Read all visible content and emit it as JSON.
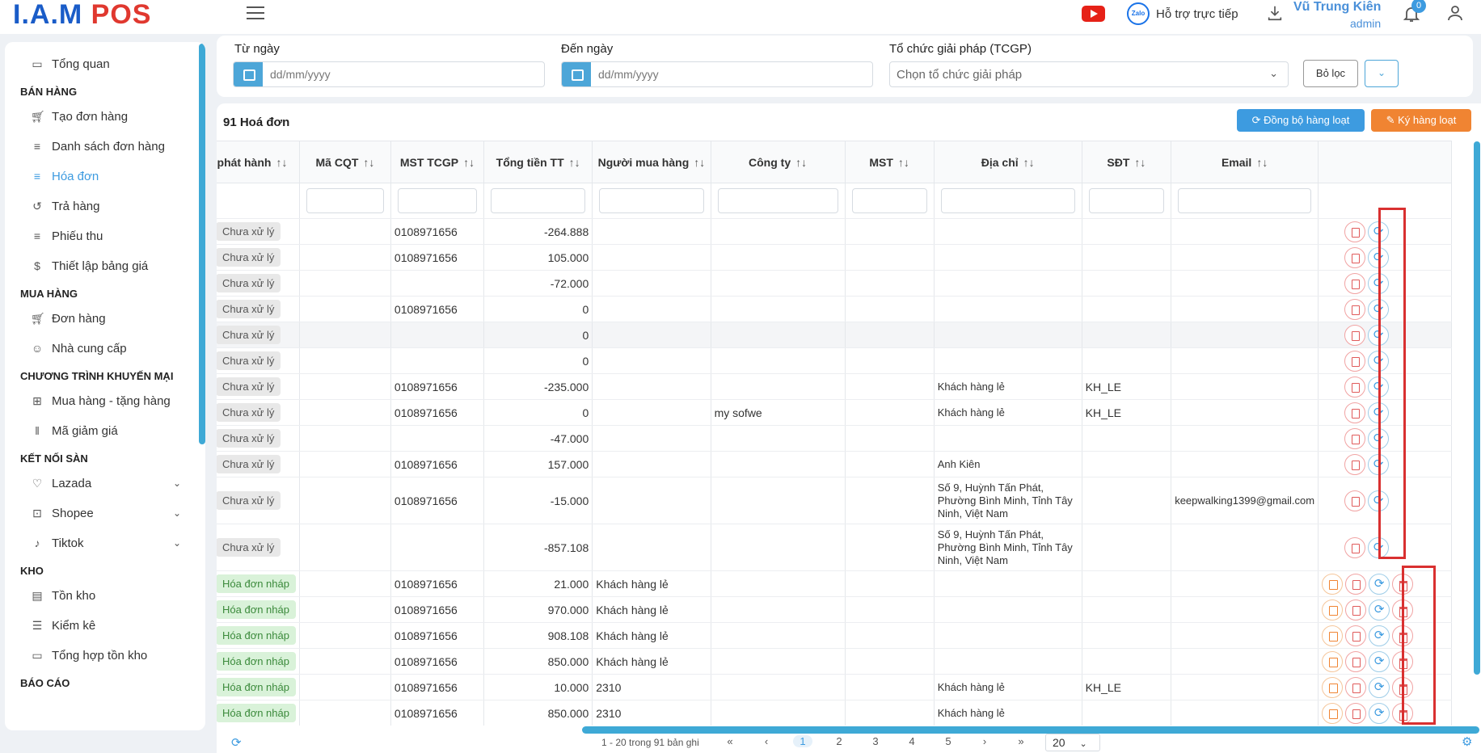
{
  "header": {
    "logo_left": "I.A.M",
    "logo_right": "POS",
    "support_label": "Hỗ trợ trực tiếp",
    "zalo_label": "Zalo",
    "user_name": "Vũ Trung Kiên",
    "user_role": "admin",
    "notification_count": "0"
  },
  "sidebar": {
    "items": [
      {
        "label": "Tổng quan",
        "icon": "monitor-icon"
      },
      {
        "section": "BÁN HÀNG"
      },
      {
        "label": "Tạo đơn hàng",
        "icon": "cart-icon"
      },
      {
        "label": "Danh sách đơn hàng",
        "icon": "list-icon"
      },
      {
        "label": "Hóa đơn",
        "icon": "list-icon",
        "active": true
      },
      {
        "label": "Trả hàng",
        "icon": "history-icon"
      },
      {
        "label": "Phiếu thu",
        "icon": "list-icon"
      },
      {
        "label": "Thiết lập bảng giá",
        "icon": "dollar-icon"
      },
      {
        "section": "MUA HÀNG"
      },
      {
        "label": "Đơn hàng",
        "icon": "cart-icon"
      },
      {
        "label": "Nhà cung cấp",
        "icon": "users-icon"
      },
      {
        "section": "CHƯƠNG TRÌNH KHUYẾN MẠI"
      },
      {
        "label": "Mua hàng - tặng hàng",
        "icon": "gift-icon"
      },
      {
        "label": "Mã giảm giá",
        "icon": "barcode-icon"
      },
      {
        "section": "KẾT NỐI SÀN"
      },
      {
        "label": "Lazada",
        "icon": "heart-icon",
        "expandable": true
      },
      {
        "label": "Shopee",
        "icon": "bag-icon",
        "expandable": true
      },
      {
        "label": "Tiktok",
        "icon": "tiktok-icon",
        "expandable": true
      },
      {
        "section": "KHO"
      },
      {
        "label": "Tồn kho",
        "icon": "warehouse-icon"
      },
      {
        "label": "Kiểm kê",
        "icon": "checklist-icon"
      },
      {
        "label": "Tổng hợp tồn kho",
        "icon": "folder-icon"
      },
      {
        "section": "BÁO CÁO"
      }
    ]
  },
  "filter": {
    "from_label": "Từ ngày",
    "from_placeholder": "dd/mm/yyyy",
    "to_label": "Đến ngày",
    "to_placeholder": "dd/mm/yyyy",
    "org_label": "Tổ chức giải pháp (TCGP)",
    "org_placeholder": "Chọn tổ chức giải pháp",
    "filter_button": "Bỏ lọc"
  },
  "toolbar": {
    "count_label": "91 Hoá đơn",
    "sync_all_label": "Đồng bộ hàng loạt",
    "sign_all_label": "Ký hàng loạt"
  },
  "table": {
    "columns": [
      "TT phát hành",
      "Mã CQT",
      "MST TCGP",
      "Tổng tiền TT",
      "Người mua hàng",
      "Công ty",
      "MST",
      "Địa chỉ",
      "SĐT",
      "Email"
    ],
    "rows": [
      {
        "status": "Chưa xử lý",
        "status_type": "gray",
        "cqt": "",
        "mst_tcgp": "0108971656",
        "total": "-264.888",
        "buyer": "",
        "company": "",
        "mst": "",
        "address": "",
        "phone": "",
        "email": "",
        "actions": [
          "pdf",
          "sync"
        ]
      },
      {
        "status": "Chưa xử lý",
        "status_type": "gray",
        "cqt": "",
        "mst_tcgp": "0108971656",
        "total": "105.000",
        "buyer": "",
        "company": "",
        "mst": "",
        "address": "",
        "phone": "",
        "email": "",
        "actions": [
          "pdf",
          "sync"
        ]
      },
      {
        "status": "Chưa xử lý",
        "status_type": "gray",
        "cqt": "",
        "mst_tcgp": "",
        "total": "-72.000",
        "buyer": "",
        "company": "",
        "mst": "",
        "address": "",
        "phone": "",
        "email": "",
        "actions": [
          "pdf",
          "sync"
        ]
      },
      {
        "status": "Chưa xử lý",
        "status_type": "gray",
        "cqt": "",
        "mst_tcgp": "0108971656",
        "total": "0",
        "buyer": "",
        "company": "",
        "mst": "",
        "address": "",
        "phone": "",
        "email": "",
        "actions": [
          "pdf",
          "sync"
        ]
      },
      {
        "status": "Chưa xử lý",
        "status_type": "gray",
        "cqt": "",
        "mst_tcgp": "",
        "total": "0",
        "buyer": "",
        "company": "",
        "mst": "",
        "address": "",
        "phone": "",
        "email": "",
        "actions": [
          "pdf",
          "sync"
        ],
        "alt": true
      },
      {
        "status": "Chưa xử lý",
        "status_type": "gray",
        "cqt": "",
        "mst_tcgp": "",
        "total": "0",
        "buyer": "",
        "company": "",
        "mst": "",
        "address": "",
        "phone": "",
        "email": "",
        "actions": [
          "pdf",
          "sync"
        ]
      },
      {
        "status": "Chưa xử lý",
        "status_type": "gray",
        "cqt": "",
        "mst_tcgp": "0108971656",
        "total": "-235.000",
        "buyer": "",
        "company": "",
        "mst": "",
        "address": "Khách hàng lẻ",
        "phone": "KH_LE",
        "email": "",
        "actions": [
          "pdf",
          "sync"
        ]
      },
      {
        "status": "Chưa xử lý",
        "status_type": "gray",
        "cqt": "",
        "mst_tcgp": "0108971656",
        "total": "0",
        "buyer": "",
        "company": "my sofwe",
        "mst": "",
        "address": "Khách hàng lẻ",
        "phone": "KH_LE",
        "email": "",
        "actions": [
          "pdf",
          "sync"
        ]
      },
      {
        "status": "Chưa xử lý",
        "status_type": "gray",
        "cqt": "",
        "mst_tcgp": "",
        "total": "-47.000",
        "buyer": "",
        "company": "",
        "mst": "",
        "address": "",
        "phone": "",
        "email": "",
        "actions": [
          "pdf",
          "sync"
        ]
      },
      {
        "status": "Chưa xử lý",
        "status_type": "gray",
        "cqt": "",
        "mst_tcgp": "0108971656",
        "total": "157.000",
        "buyer": "",
        "company": "",
        "mst": "",
        "address": "Anh Kiên",
        "phone": "",
        "email": "",
        "actions": [
          "pdf",
          "sync"
        ]
      },
      {
        "status": "Chưa xử lý",
        "status_type": "gray",
        "cqt": "",
        "mst_tcgp": "0108971656",
        "total": "-15.000",
        "buyer": "",
        "company": "",
        "mst": "",
        "address": "Số 9, Huỳnh Tấn Phát, Phường Bình Minh, Tỉnh Tây Ninh, Việt Nam",
        "phone": "",
        "email": "keepwalking1399@gmail.com",
        "actions": [
          "pdf",
          "sync"
        ],
        "tall": true
      },
      {
        "status": "Chưa xử lý",
        "status_type": "gray",
        "cqt": "",
        "mst_tcgp": "",
        "total": "-857.108",
        "buyer": "",
        "company": "",
        "mst": "",
        "address": "Số 9, Huỳnh Tấn Phát, Phường Bình Minh, Tỉnh Tây Ninh, Việt Nam",
        "phone": "",
        "email": "",
        "actions": [
          "pdf",
          "sync"
        ],
        "tall": true
      },
      {
        "status": "Hóa đơn nháp",
        "status_type": "green",
        "cqt": "",
        "mst_tcgp": "0108971656",
        "total": "21.000",
        "buyer": "Khách hàng lẻ",
        "company": "",
        "mst": "",
        "address": "",
        "phone": "",
        "email": "",
        "actions": [
          "sign",
          "pdf",
          "sync",
          "del"
        ]
      },
      {
        "status": "Hóa đơn nháp",
        "status_type": "green",
        "cqt": "",
        "mst_tcgp": "0108971656",
        "total": "970.000",
        "buyer": "Khách hàng lẻ",
        "company": "",
        "mst": "",
        "address": "",
        "phone": "",
        "email": "",
        "actions": [
          "sign",
          "pdf",
          "sync",
          "del"
        ]
      },
      {
        "status": "Hóa đơn nháp",
        "status_type": "green",
        "cqt": "",
        "mst_tcgp": "0108971656",
        "total": "908.108",
        "buyer": "Khách hàng lẻ",
        "company": "",
        "mst": "",
        "address": "",
        "phone": "",
        "email": "",
        "actions": [
          "sign",
          "pdf",
          "sync",
          "del"
        ]
      },
      {
        "status": "Hóa đơn nháp",
        "status_type": "green",
        "cqt": "",
        "mst_tcgp": "0108971656",
        "total": "850.000",
        "buyer": "Khách hàng lẻ",
        "company": "",
        "mst": "",
        "address": "",
        "phone": "",
        "email": "",
        "actions": [
          "sign",
          "pdf",
          "sync",
          "del"
        ]
      },
      {
        "status": "Hóa đơn nháp",
        "status_type": "green",
        "cqt": "",
        "mst_tcgp": "0108971656",
        "total": "10.000",
        "buyer": "2310",
        "company": "",
        "mst": "",
        "address": "Khách hàng lẻ",
        "phone": "KH_LE",
        "email": "",
        "actions": [
          "sign",
          "pdf",
          "sync",
          "del"
        ]
      },
      {
        "status": "Hóa đơn nháp",
        "status_type": "green",
        "cqt": "",
        "mst_tcgp": "0108971656",
        "total": "850.000",
        "buyer": "2310",
        "company": "",
        "mst": "",
        "address": "Khách hàng lẻ",
        "phone": "",
        "email": "",
        "actions": [
          "sign",
          "pdf",
          "sync",
          "del"
        ]
      }
    ]
  },
  "pagination": {
    "info": "1 - 20 trong 91 bản ghi",
    "first": "«",
    "prev": "‹",
    "pages": [
      "1",
      "2",
      "3",
      "4",
      "5"
    ],
    "current": "1",
    "next": "›",
    "last": "»",
    "page_size": "20"
  },
  "colors": {
    "accent": "#3d9be0",
    "warning": "#f08432",
    "highlight": "#d93030"
  }
}
